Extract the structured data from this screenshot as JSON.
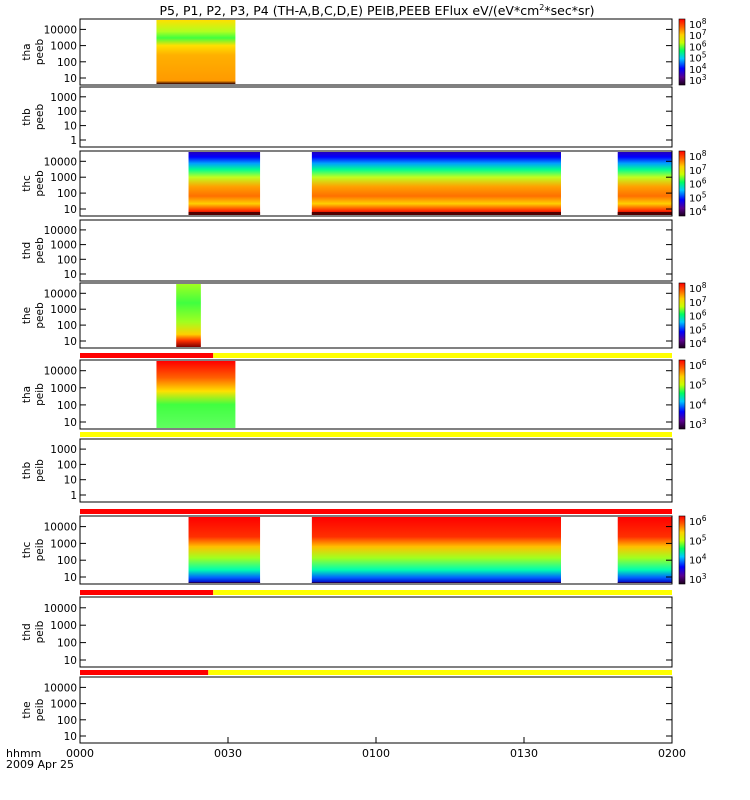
{
  "chart_data": {
    "type": "heatmap",
    "title": "P5, P1, P2, P3, P4 (TH-A,B,C,D,E) PEIB,PEEB EFlux eV/(eV*cm",
    "title_sup": "2",
    "title_end": "*sec*sr)",
    "time_axis": {
      "label": "hhmm",
      "date": "2009 Apr 25",
      "ticks": [
        {
          "t": 0,
          "label": "0000"
        },
        {
          "t": 30,
          "label": "0030"
        },
        {
          "t": 60,
          "label": "0100"
        },
        {
          "t": 90,
          "label": "0130"
        },
        {
          "t": 120,
          "label": "0200"
        }
      ],
      "range": [
        0,
        120
      ]
    },
    "panels": [
      {
        "probe": "tha",
        "product": "peeb",
        "yticks": [
          "10",
          "100",
          "1000",
          "10000"
        ],
        "data_intervals": [
          [
            15.5,
            31.5
          ]
        ],
        "colorbar": {
          "ticks": [
            "10",
            "10",
            "10",
            "10",
            "10",
            "10"
          ],
          "exps": [
            "3",
            "4",
            "5",
            "6",
            "7",
            "8"
          ]
        }
      },
      {
        "probe": "thb",
        "product": "peeb",
        "yticks": [
          "1",
          "10",
          "100",
          "1000"
        ],
        "data_intervals": [],
        "colorbar": null
      },
      {
        "probe": "thc",
        "product": "peeb",
        "yticks": [
          "10",
          "100",
          "1000",
          "10000"
        ],
        "data_intervals": [
          [
            22,
            36.5
          ],
          [
            47,
            97.5
          ],
          [
            109,
            120
          ]
        ],
        "colorbar": {
          "ticks": [
            "10",
            "10",
            "10",
            "10",
            "10"
          ],
          "exps": [
            "4",
            "5",
            "6",
            "7",
            "8"
          ]
        }
      },
      {
        "probe": "thd",
        "product": "peeb",
        "yticks": [
          "10",
          "100",
          "1000",
          "10000"
        ],
        "data_intervals": [],
        "colorbar": null
      },
      {
        "probe": "the",
        "product": "peeb",
        "yticks": [
          "10",
          "100",
          "1000",
          "10000"
        ],
        "data_intervals": [
          [
            19.5,
            24.5
          ]
        ],
        "colorbar": {
          "ticks": [
            "10",
            "10",
            "10",
            "10",
            "10"
          ],
          "exps": [
            "4",
            "5",
            "6",
            "7",
            "8"
          ]
        }
      },
      {
        "probe": "tha",
        "product": "peib",
        "yticks": [
          "10",
          "100",
          "1000",
          "10000"
        ],
        "data_intervals": [
          [
            15.5,
            31.5
          ]
        ],
        "colorbar": {
          "ticks": [
            "10",
            "10",
            "10",
            "10"
          ],
          "exps": [
            "3",
            "4",
            "5",
            "6"
          ]
        }
      },
      {
        "probe": "thb",
        "product": "peib",
        "yticks": [
          "1",
          "10",
          "100",
          "1000"
        ],
        "data_intervals": [],
        "colorbar": null
      },
      {
        "probe": "thc",
        "product": "peib",
        "yticks": [
          "10",
          "100",
          "1000",
          "10000"
        ],
        "data_intervals": [
          [
            22,
            36.5
          ],
          [
            47,
            97.5
          ],
          [
            109,
            120
          ]
        ],
        "colorbar": {
          "ticks": [
            "10",
            "10",
            "10",
            "10"
          ],
          "exps": [
            "3",
            "4",
            "5",
            "6"
          ]
        }
      },
      {
        "probe": "thd",
        "product": "peib",
        "yticks": [
          "10",
          "100",
          "1000",
          "10000"
        ],
        "data_intervals": [],
        "colorbar": null
      },
      {
        "probe": "the",
        "product": "peib",
        "yticks": [
          "10",
          "100",
          "1000",
          "10000"
        ],
        "data_intervals": [],
        "colorbar": null
      }
    ],
    "mode_bars": [
      {
        "above_panel": 5,
        "red_until": 27
      },
      {
        "above_panel": 6,
        "red_until": 0
      },
      {
        "above_panel": 7,
        "red_until": 120
      },
      {
        "above_panel": 8,
        "red_until": 27
      },
      {
        "above_panel": 9,
        "red_until": 26
      }
    ],
    "colors": {
      "mode_red": "#ff0000",
      "mode_yellow": "#ffff00",
      "axis": "#000000"
    }
  }
}
